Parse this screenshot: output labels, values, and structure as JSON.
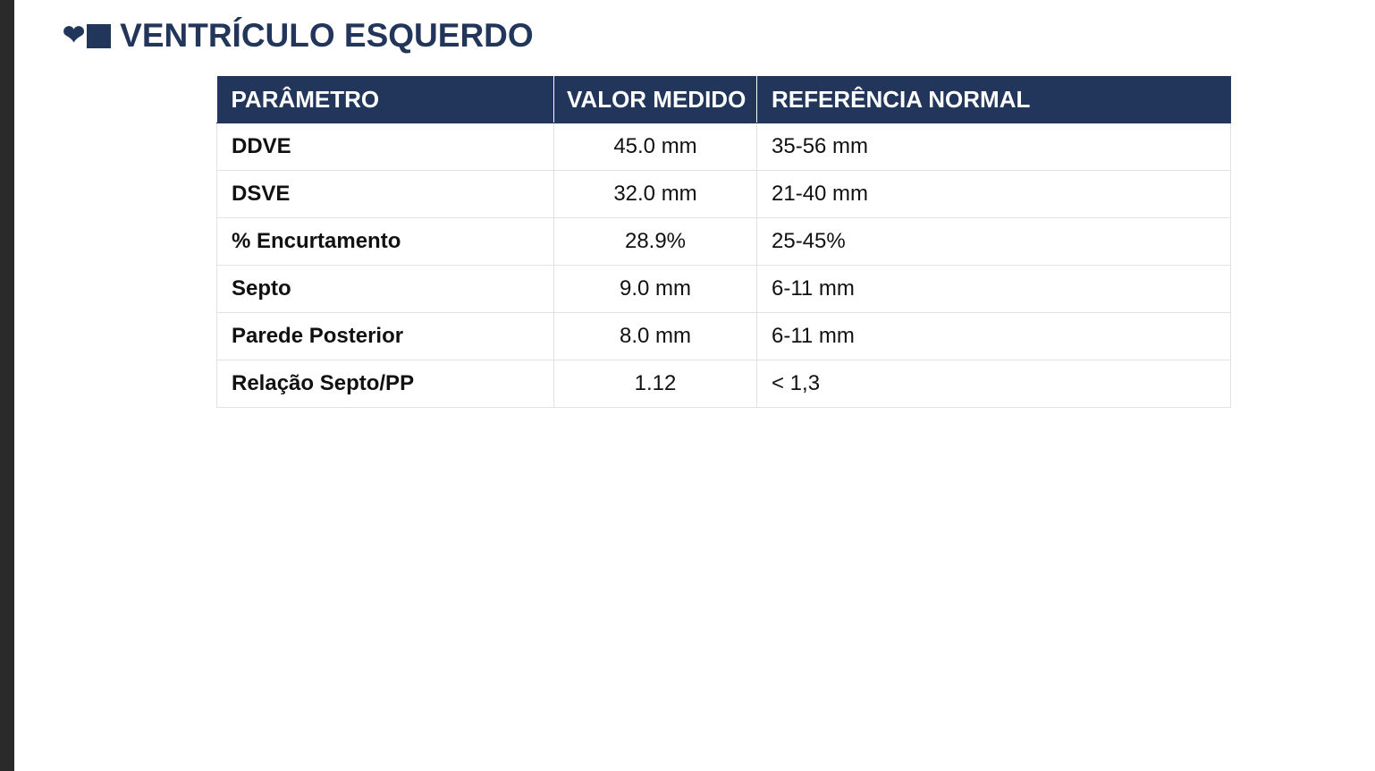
{
  "section": {
    "icons": [
      "heart-icon",
      "square-icon"
    ],
    "title": "VENTRÍCULO ESQUERDO"
  },
  "table": {
    "headers": [
      "PARÂMETRO",
      "VALOR MEDIDO",
      "REFERÊNCIA NORMAL"
    ],
    "rows": [
      {
        "parameter": "DDVE",
        "value": "45.0 mm",
        "reference": "35-56 mm"
      },
      {
        "parameter": "DSVE",
        "value": "32.0 mm",
        "reference": "21-40 mm"
      },
      {
        "parameter": "% Encurtamento",
        "value": "28.9%",
        "reference": "25-45%"
      },
      {
        "parameter": "Septo",
        "value": "9.0 mm",
        "reference": "6-11 mm"
      },
      {
        "parameter": "Parede Posterior",
        "value": "8.0 mm",
        "reference": "6-11 mm"
      },
      {
        "parameter": "Relação Septo/PP",
        "value": "1.12",
        "reference": "< 1,3"
      }
    ]
  },
  "colors": {
    "header_bg": "#22355a",
    "title": "#22355a",
    "border": "#e2e2e2"
  }
}
